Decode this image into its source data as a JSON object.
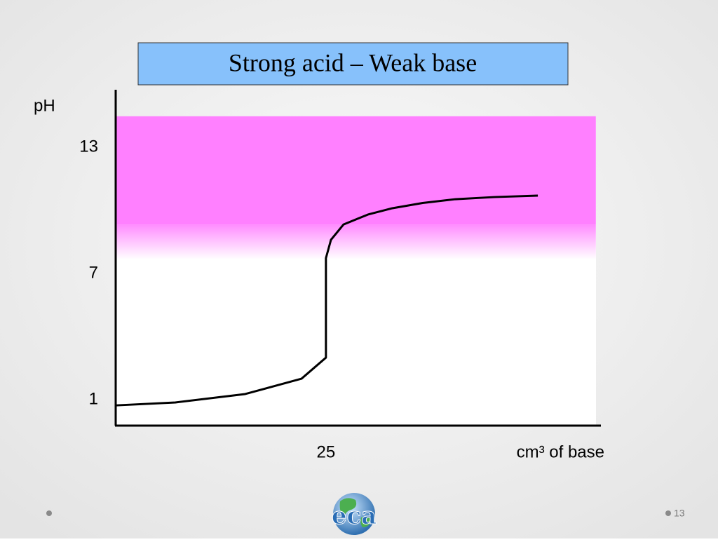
{
  "chart_data": {
    "type": "line",
    "title": "Strong acid – Weak base",
    "y_label": "pH",
    "x_label": "cm³ of base",
    "x": [
      0,
      7.1,
      15.4,
      22.1,
      25,
      25,
      25.6,
      27.1,
      30,
      32.9,
      36.5,
      40.4,
      45,
      50.2
    ],
    "series": [
      {
        "name": "pH",
        "color": "#000000",
        "values": [
          0.73,
          0.87,
          1.27,
          2.0,
          3.0,
          7.73,
          8.6,
          9.33,
          9.8,
          10.1,
          10.35,
          10.53,
          10.63,
          10.7
        ]
      }
    ],
    "xlim": [
      0,
      57.7
    ],
    "xticks": [
      25
    ],
    "ylim": [
      -0.23,
      15.73
    ],
    "yticks": [
      1,
      7,
      13
    ],
    "shaded_range": [
      9.33,
      14.47
    ],
    "shaded_color": "#ff80ff",
    "shaded_xlim": [
      0,
      57.1
    ],
    "grid": false
  },
  "slide": {
    "logo_text": "eca",
    "slide_number": "13"
  }
}
